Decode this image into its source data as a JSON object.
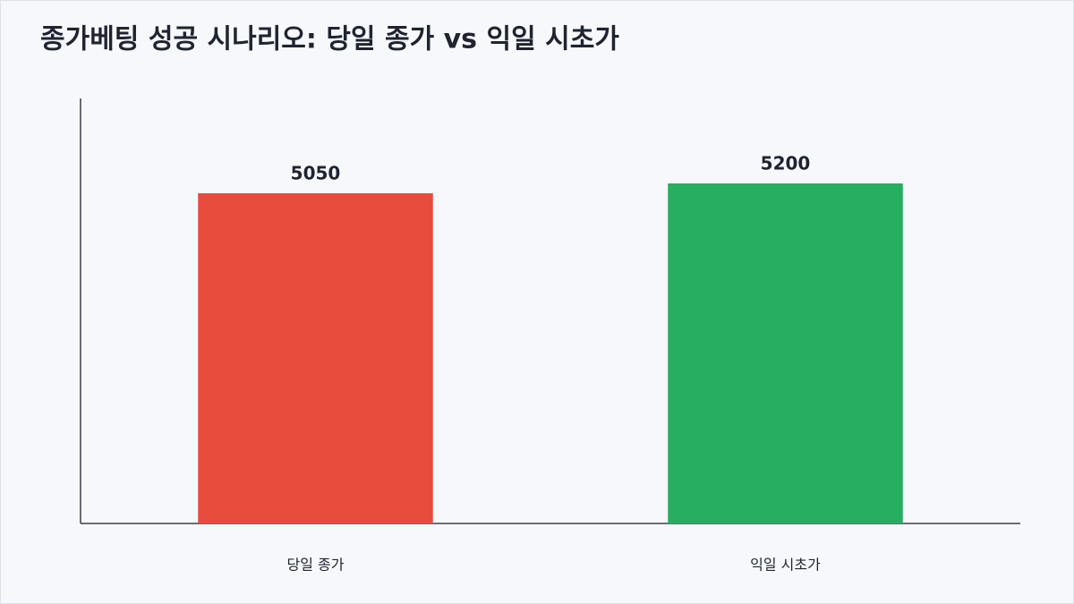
{
  "chart_data": {
    "type": "bar",
    "title": "종가베팅 성공 시나리오: 당일 종가 vs 익일 시초가",
    "categories": [
      "당일 종가",
      "익일 시초가"
    ],
    "values": [
      5050,
      5200
    ],
    "colors": [
      "#e74c3c",
      "#27ae60"
    ],
    "ylim": [
      0,
      6500
    ],
    "grid": false
  }
}
